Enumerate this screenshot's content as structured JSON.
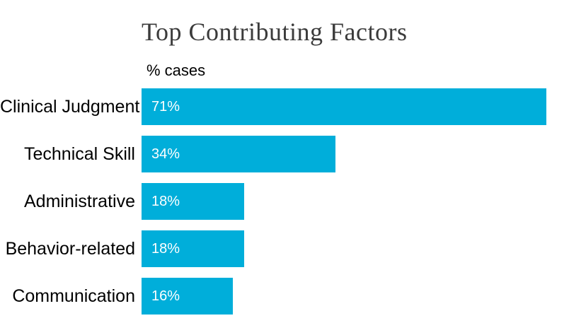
{
  "title": "Top Contributing Factors",
  "axis_label": "% cases",
  "colors": {
    "bar": "#00aeda",
    "title_text": "#3b3b3b",
    "category_text": "#000000",
    "value_text": "#ffffff",
    "background": "#ffffff"
  },
  "chart_data": {
    "type": "bar",
    "orientation": "horizontal",
    "title": "Top Contributing Factors",
    "xlabel": "% cases",
    "ylabel": "",
    "categories": [
      "Clinical Judgment",
      "Technical Skill",
      "Administrative",
      "Behavior-related",
      "Communication"
    ],
    "values": [
      71,
      34,
      18,
      18,
      16
    ],
    "value_labels": [
      "71%",
      "34%",
      "18%",
      "18%",
      "16%"
    ],
    "xlim": [
      0,
      75
    ],
    "grid": false,
    "legend": false,
    "value_label_position": "inside-start"
  }
}
